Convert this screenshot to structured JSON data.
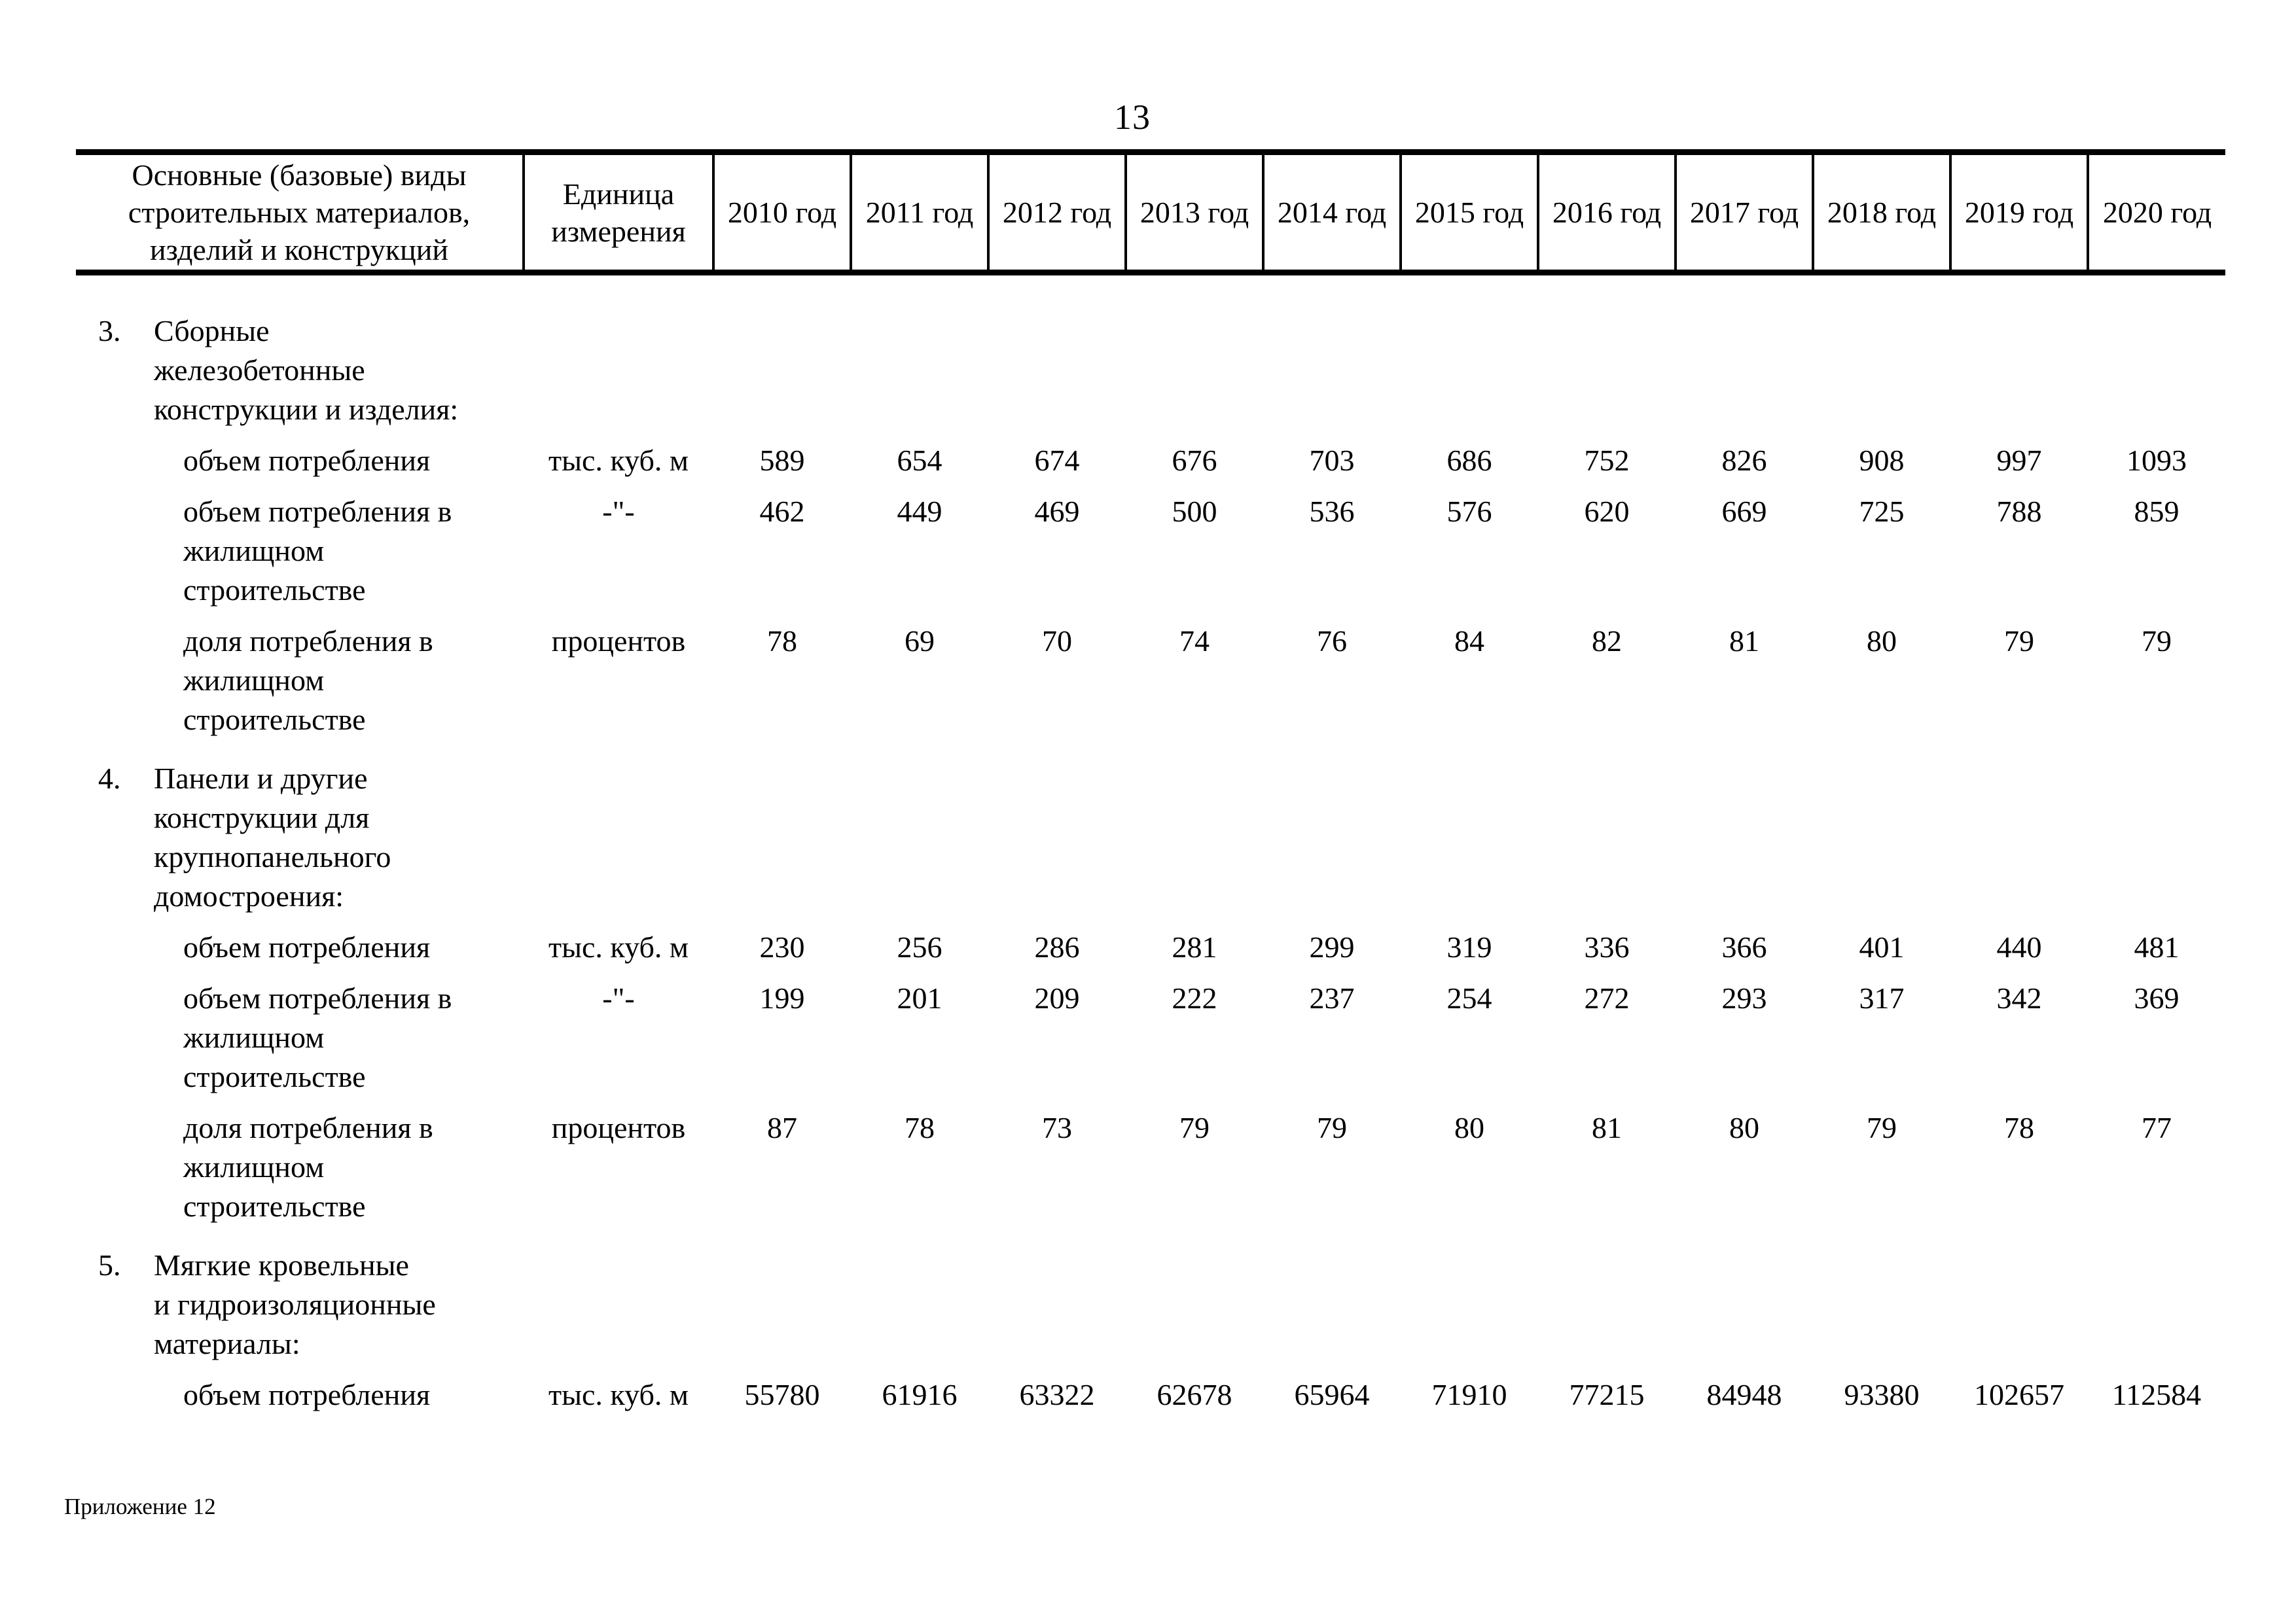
{
  "page": {
    "number": "13",
    "footer": "Приложение 12"
  },
  "table": {
    "header": {
      "materials": "Основные (базовые) виды\nстроительных материалов,\nизделий и конструкций",
      "unit": "Единица\nизмерения",
      "years": [
        "2010 год",
        "2011 год",
        "2012 год",
        "2013 год",
        "2014 год",
        "2015 год",
        "2016 год",
        "2017 год",
        "2018 год",
        "2019 год",
        "2020 год"
      ]
    },
    "sections": [
      {
        "num": "3.",
        "title": "Сборные\nжелезобетонные\nконструкции и изделия:",
        "rows": [
          {
            "label": "объем потребления",
            "unit": "тыс. куб. м",
            "values": [
              "589",
              "654",
              "674",
              "676",
              "703",
              "686",
              "752",
              "826",
              "908",
              "997",
              "1093"
            ]
          },
          {
            "label": "объем потребления в\nжилищном\nстроительстве",
            "unit": "-\"-",
            "values": [
              "462",
              "449",
              "469",
              "500",
              "536",
              "576",
              "620",
              "669",
              "725",
              "788",
              "859"
            ]
          },
          {
            "label": "доля потребления в\nжилищном\nстроительстве",
            "unit": "процентов",
            "values": [
              "78",
              "69",
              "70",
              "74",
              "76",
              "84",
              "82",
              "81",
              "80",
              "79",
              "79"
            ]
          }
        ]
      },
      {
        "num": "4.",
        "title": "Панели и другие\nконструкции для\nкрупнопанельного\nдомостроения:",
        "rows": [
          {
            "label": "объем потребления",
            "unit": "тыс. куб. м",
            "values": [
              "230",
              "256",
              "286",
              "281",
              "299",
              "319",
              "336",
              "366",
              "401",
              "440",
              "481"
            ]
          },
          {
            "label": "объем потребления в\nжилищном\nстроительстве",
            "unit": "-\"-",
            "values": [
              "199",
              "201",
              "209",
              "222",
              "237",
              "254",
              "272",
              "293",
              "317",
              "342",
              "369"
            ]
          },
          {
            "label": "доля потребления в\nжилищном\nстроительстве",
            "unit": "процентов",
            "values": [
              "87",
              "78",
              "73",
              "79",
              "79",
              "80",
              "81",
              "80",
              "79",
              "78",
              "77"
            ]
          }
        ]
      },
      {
        "num": "5.",
        "title": "Мягкие кровельные\nи гидроизоляционные\nматериалы:",
        "rows": [
          {
            "label": "объем потребления",
            "unit": "тыс. куб. м",
            "values": [
              "55780",
              "61916",
              "63322",
              "62678",
              "65964",
              "71910",
              "77215",
              "84948",
              "93380",
              "102657",
              "112584"
            ]
          }
        ]
      }
    ]
  }
}
